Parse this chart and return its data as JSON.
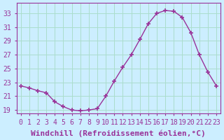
{
  "x": [
    0,
    1,
    2,
    3,
    4,
    5,
    6,
    7,
    8,
    9,
    10,
    11,
    12,
    13,
    14,
    15,
    16,
    17,
    18,
    19,
    20,
    21,
    22,
    23
  ],
  "y": [
    22.5,
    22.2,
    21.8,
    21.5,
    20.2,
    19.5,
    19.0,
    18.9,
    19.0,
    19.2,
    21.0,
    23.2,
    25.2,
    27.0,
    29.2,
    31.5,
    33.0,
    33.4,
    33.3,
    32.4,
    30.2,
    27.0,
    24.5,
    22.5
  ],
  "line_color": "#993399",
  "marker": "+",
  "bg_color": "#cceeff",
  "grid_color": "#aaddcc",
  "tick_label_color": "#993399",
  "xlabel": "Windchill (Refroidissement éolien,°C)",
  "ylabel": "",
  "ylim": [
    18.5,
    34.5
  ],
  "yticks": [
    19,
    21,
    23,
    25,
    27,
    29,
    31,
    33
  ],
  "xlim": [
    -0.5,
    23.5
  ],
  "xticks": [
    0,
    1,
    2,
    3,
    4,
    5,
    6,
    7,
    8,
    9,
    10,
    11,
    12,
    13,
    14,
    15,
    16,
    17,
    18,
    19,
    20,
    21,
    22,
    23
  ],
  "title_color": "#993399",
  "font_size": 7
}
